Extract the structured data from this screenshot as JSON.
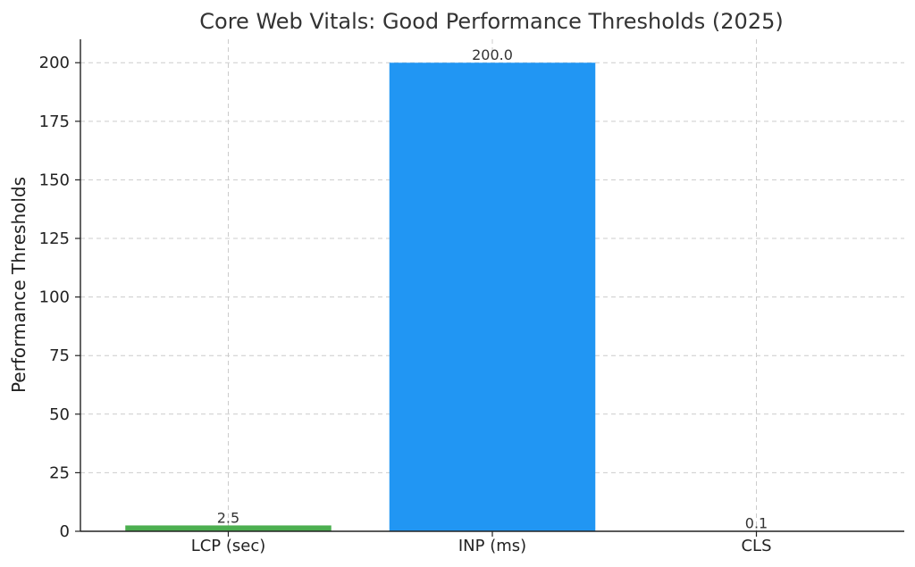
{
  "chart_data": {
    "type": "bar",
    "title": "Core Web Vitals: Good Performance Thresholds (2025)",
    "xlabel": "",
    "ylabel": "Performance Thresholds",
    "categories": [
      "LCP (sec)",
      "INP (ms)",
      "CLS"
    ],
    "values": [
      2.5,
      200.0,
      0.1
    ],
    "value_labels": [
      "2.5",
      "200.0",
      "0.1"
    ],
    "colors": [
      "#4caf50",
      "#2196f3",
      "#ff9800"
    ],
    "ylim": [
      0,
      210
    ],
    "yticks": [
      0,
      25,
      50,
      75,
      100,
      125,
      150,
      175,
      200
    ],
    "grid": true,
    "legend": "none"
  }
}
